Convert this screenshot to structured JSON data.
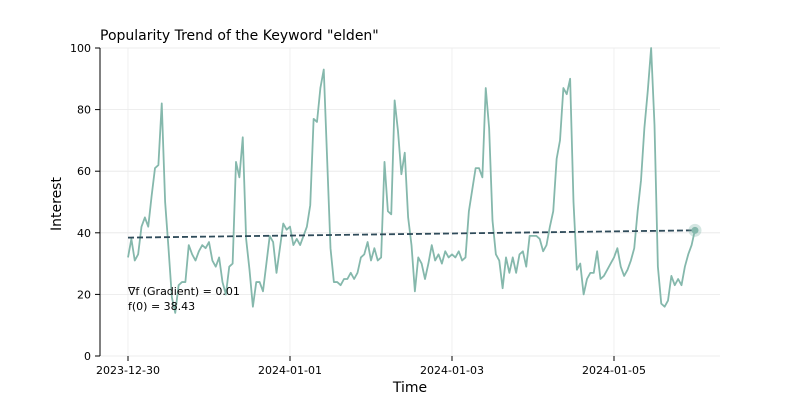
{
  "chart_data": {
    "type": "line",
    "title": "Popularity Trend of the Keyword \"elden\"",
    "xlabel": "Time",
    "ylabel": "Interest",
    "xlim": [
      "2023-12-30T00:00",
      "2024-01-06T00:00"
    ],
    "ylim": [
      0,
      100
    ],
    "xticks": [
      "2023-12-30",
      "2024-01-01",
      "2024-01-03",
      "2024-01-05"
    ],
    "yticks": [
      0,
      20,
      40,
      60,
      80,
      100
    ],
    "grid": true,
    "colors": {
      "series": "#85b8ac",
      "trend": "#2f4b5a",
      "marker": "#85b8ac"
    },
    "series": [
      {
        "x_start": "2023-12-30T00:00",
        "x_step_hours": 1,
        "values": [
          32,
          38,
          31,
          33,
          42,
          45,
          42,
          52,
          61,
          62,
          82,
          50,
          35,
          19,
          14,
          23,
          24,
          24,
          36,
          33,
          31,
          34,
          36,
          35,
          37,
          31,
          29,
          32,
          24,
          20,
          29,
          30,
          63,
          58,
          71,
          38,
          28,
          16,
          24,
          24,
          21,
          30,
          39,
          37,
          27,
          35,
          43,
          41,
          42,
          36,
          38,
          36,
          39,
          42,
          49,
          77,
          76,
          87,
          93,
          64,
          35,
          24,
          24,
          23,
          25,
          25,
          27,
          25,
          27,
          32,
          33,
          37,
          31,
          35,
          31,
          32,
          63,
          47,
          46,
          83,
          73,
          59,
          66,
          45,
          36,
          21,
          32,
          30,
          25,
          30,
          36,
          31,
          33,
          30,
          34,
          32,
          33,
          32,
          34,
          31,
          32,
          47,
          54,
          61,
          61,
          58,
          87,
          74,
          44,
          33,
          31,
          22,
          32,
          27,
          32,
          27,
          33,
          34,
          29,
          39,
          39,
          39,
          38,
          34,
          36,
          42,
          47,
          64,
          70,
          87,
          85,
          90,
          50,
          28,
          30,
          20,
          25,
          27,
          27,
          34,
          25,
          26,
          28,
          30,
          32,
          35,
          29,
          26,
          28,
          31,
          35,
          47,
          57,
          74,
          86,
          100,
          75,
          29,
          17,
          16,
          18,
          26,
          23,
          25,
          23,
          29,
          33,
          36,
          41
        ]
      },
      {
        "type": "trend-line",
        "start": 38.43,
        "end": 40.8
      }
    ],
    "annotations": [
      "∇f (Gradient) = 0.01",
      "f(0) = 38.43"
    ]
  }
}
